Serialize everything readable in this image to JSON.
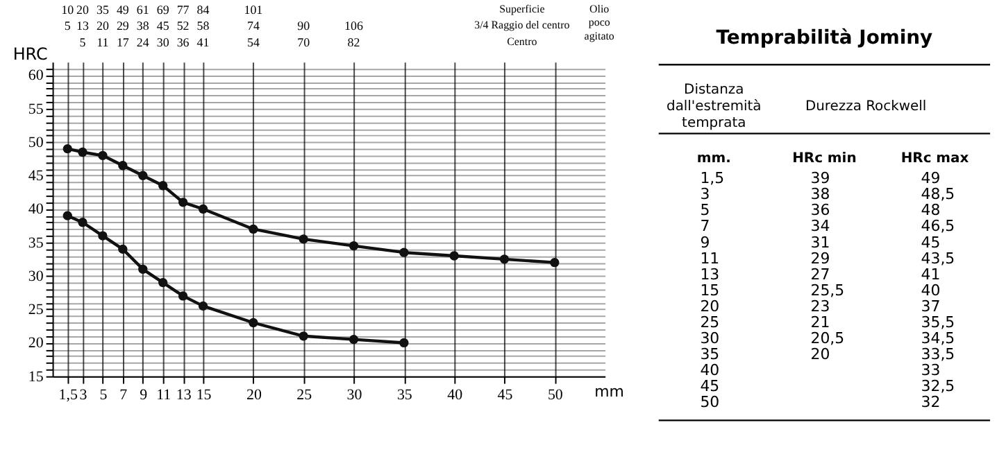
{
  "chart_data": {
    "type": "line",
    "title": "Temprabilità Jominy",
    "xlabel": "mm",
    "ylabel": "HRC",
    "x": [
      1.5,
      3,
      5,
      7,
      9,
      11,
      13,
      15,
      20,
      25,
      30,
      35,
      40,
      45,
      50
    ],
    "series": [
      {
        "color": "#111111",
        "values": [
          49,
          48.5,
          48,
          46.5,
          45,
          43.5,
          41,
          40,
          37,
          35.5,
          34.5,
          33.5,
          33,
          32.5,
          32
        ]
      },
      {
        "color": "#111111",
        "values": [
          39,
          38,
          36,
          34,
          31,
          29,
          27,
          25.5,
          23,
          21,
          20.5,
          20,
          null,
          null,
          null
        ]
      }
    ],
    "marker": "circle",
    "line_style": "solid",
    "grid": true,
    "legend": false,
    "xlim": [
      0,
      55
    ],
    "ylim": [
      15,
      62
    ],
    "xticks": [
      {
        "value": 1.5,
        "label": "1,5"
      },
      3,
      5,
      7,
      9,
      11,
      13,
      15,
      20,
      25,
      30,
      35,
      40,
      45,
      50
    ],
    "yticks": [
      15,
      {
        "value": 16,
        "label": null
      },
      {
        "value": 17,
        "label": null
      },
      {
        "value": 18,
        "label": null
      },
      {
        "value": 19,
        "label": null
      },
      20,
      {
        "value": 21,
        "label": null
      },
      {
        "value": 22,
        "label": null
      },
      {
        "value": 23,
        "label": null
      },
      {
        "value": 24,
        "label": null
      },
      25,
      {
        "value": 26,
        "label": null
      },
      {
        "value": 27,
        "label": null
      },
      {
        "value": 28,
        "label": null
      },
      {
        "value": 29,
        "label": null
      },
      30,
      {
        "value": 31,
        "label": null
      },
      {
        "value": 32,
        "label": null
      },
      {
        "value": 33,
        "label": null
      },
      {
        "value": 34,
        "label": null
      },
      35,
      {
        "value": 36,
        "label": null
      },
      {
        "value": 37,
        "label": null
      },
      {
        "value": 38,
        "label": null
      },
      {
        "value": 39,
        "label": null
      },
      40,
      {
        "value": 41,
        "label": null
      },
      {
        "value": 42,
        "label": null
      },
      {
        "value": 43,
        "label": null
      },
      {
        "value": 44,
        "label": null
      },
      45,
      {
        "value": 46,
        "label": null
      },
      {
        "value": 47,
        "label": null
      },
      {
        "value": 48,
        "label": null
      },
      {
        "value": 49,
        "label": null
      },
      50,
      {
        "value": 51,
        "label": null
      },
      {
        "value": 52,
        "label": null
      },
      {
        "value": 53,
        "label": null
      },
      {
        "value": 54,
        "label": null
      },
      55,
      {
        "value": 56,
        "label": null
      },
      {
        "value": 57,
        "label": null
      },
      {
        "value": 58,
        "label": null
      },
      {
        "value": 59,
        "label": null
      },
      60,
      {
        "value": 61,
        "label": null
      }
    ],
    "annotations": [
      "Superficie",
      "3/4 Raggio del centro",
      "Centro",
      "Olio poco agitato",
      "Distanza dall'estremità temprata",
      "Durezza Rockwell",
      "mm.",
      "HRc min",
      "HRc max",
      "10 20 35 49 61 69 77 84 101",
      "5 13 20 29 38 45 52 58 74 90 106",
      "5 11 17 24 30 36 41 54 70 82",
      "1,5 3 5 7 9 11 13 15 20 25 30 35 40 45 50",
      "39 38 36 34 31 29 27 25,5 23 21 20,5 20",
      "49 48,5 48 46,5 45 43,5 41 40 37 35,5 34,5 33,5 33 32,5 32"
    ]
  }
}
